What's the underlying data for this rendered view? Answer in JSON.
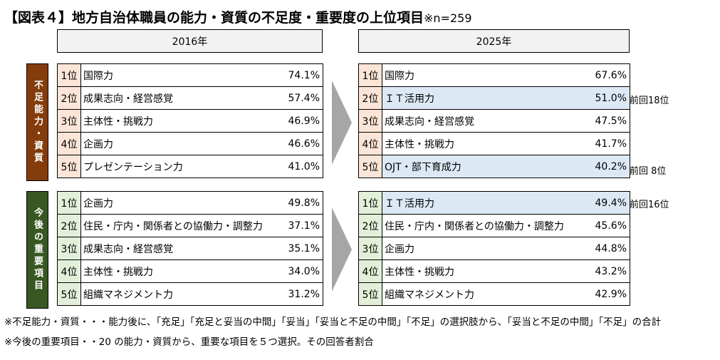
{
  "title": "【図表４】地方自治体職員の能力・資質の不足度・重要度の上位項目",
  "sample": "※n=259",
  "years": {
    "left": "2016年",
    "right": "2025年"
  },
  "sections": {
    "shortage": {
      "label": "不足能力・資質",
      "color": "#843c0c",
      "rank_bg": "#fbe5d6"
    },
    "importance": {
      "label": "今後の重要項目",
      "color": "#385723",
      "rank_bg": "#e2f0d9"
    }
  },
  "shortage_2016": [
    {
      "rank": "1位",
      "item": "国際力",
      "pct": "74.1%"
    },
    {
      "rank": "2位",
      "item": "成果志向・経営感覚",
      "pct": "57.4%"
    },
    {
      "rank": "3位",
      "item": "主体性・挑戦力",
      "pct": "46.9%"
    },
    {
      "rank": "4位",
      "item": "企画力",
      "pct": "46.6%"
    },
    {
      "rank": "5位",
      "item": "プレゼンテーション力",
      "pct": "41.0%"
    }
  ],
  "shortage_2025": [
    {
      "rank": "1位",
      "item": "国際力",
      "pct": "67.6%",
      "note": ""
    },
    {
      "rank": "2位",
      "item": "ＩＴ活用力",
      "pct": "51.0%",
      "note": "前回18位"
    },
    {
      "rank": "3位",
      "item": "成果志向・経営感覚",
      "pct": "47.5%",
      "note": ""
    },
    {
      "rank": "4位",
      "item": "主体性・挑戦力",
      "pct": "41.7%",
      "note": ""
    },
    {
      "rank": "5位",
      "item": "OJT・部下育成力",
      "pct": "40.2%",
      "note": "前回 8位"
    }
  ],
  "importance_2016": [
    {
      "rank": "1位",
      "item": "企画力",
      "pct": "49.8%"
    },
    {
      "rank": "2位",
      "item": "住民・庁内・関係者との協働力・調整力",
      "pct": "37.1%"
    },
    {
      "rank": "3位",
      "item": "成果志向・経営感覚",
      "pct": "35.1%"
    },
    {
      "rank": "4位",
      "item": "主体性・挑戦力",
      "pct": "34.0%"
    },
    {
      "rank": "5位",
      "item": "組織マネジメント力",
      "pct": "31.2%"
    }
  ],
  "importance_2025": [
    {
      "rank": "1位",
      "item": "ＩＴ活用力",
      "pct": "49.4%",
      "note": "前回16位"
    },
    {
      "rank": "2位",
      "item": "住民・庁内・関係者との協働力・調整力",
      "pct": "45.6%",
      "note": ""
    },
    {
      "rank": "3位",
      "item": "企画力",
      "pct": "44.8%",
      "note": ""
    },
    {
      "rank": "4位",
      "item": "主体性・挑戦力",
      "pct": "43.2%",
      "note": ""
    },
    {
      "rank": "5位",
      "item": "組織マネジメント力",
      "pct": "42.9%",
      "note": ""
    }
  ],
  "footnotes": [
    "※不足能力・資質・・・能力後に、「充足」「充足と妥当の中間」「妥当」「妥当と不足の中間」「不足」の選択肢から、「妥当と不足の中間」「不足」の合計",
    "※今後の重要項目・・20 の能力・資質から、重要な項目を５つ選択。その回答者割合"
  ],
  "colors": {
    "highlight": "#dce9f5",
    "arrow": "#a6a6a6",
    "yearbox": "#f2f2f2"
  }
}
